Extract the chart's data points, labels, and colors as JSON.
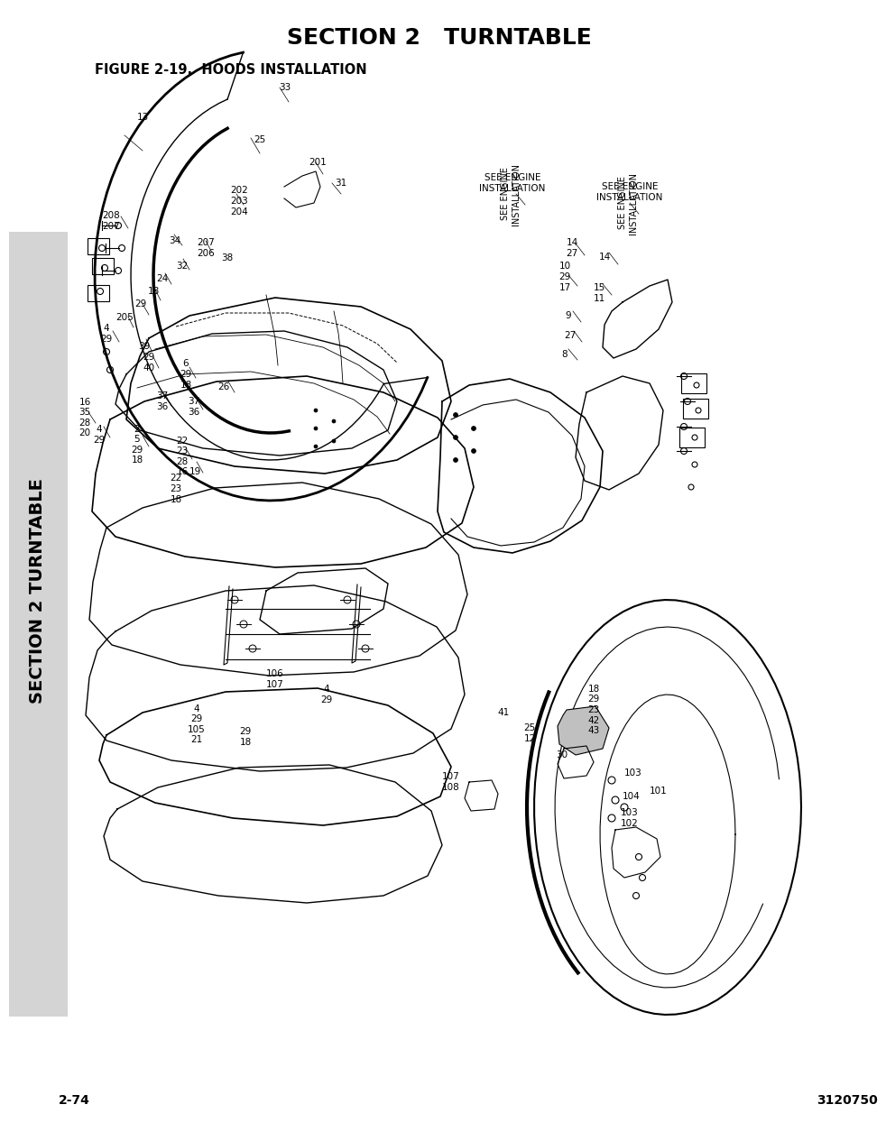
{
  "title": "SECTION 2   TURNTABLE",
  "figure_label": "FIGURE 2-19.  HOODS INSTALLATION",
  "page_number": "2-74",
  "part_number": "3120750",
  "sidebar_text": [
    "S",
    "E",
    "C",
    "T",
    "I",
    "O",
    "N",
    "",
    "2",
    "",
    "T",
    "U",
    "R",
    "N",
    "T",
    "A",
    "B",
    "L",
    "E"
  ],
  "sidebar_bg": "#d4d4d4",
  "bg_color": "#ffffff",
  "title_fontsize": 18,
  "figure_label_fontsize": 10.5,
  "footer_fontsize": 10,
  "sidebar_fontsize": 14,
  "line_color": "#000000",
  "label_fontsize": 7.5
}
